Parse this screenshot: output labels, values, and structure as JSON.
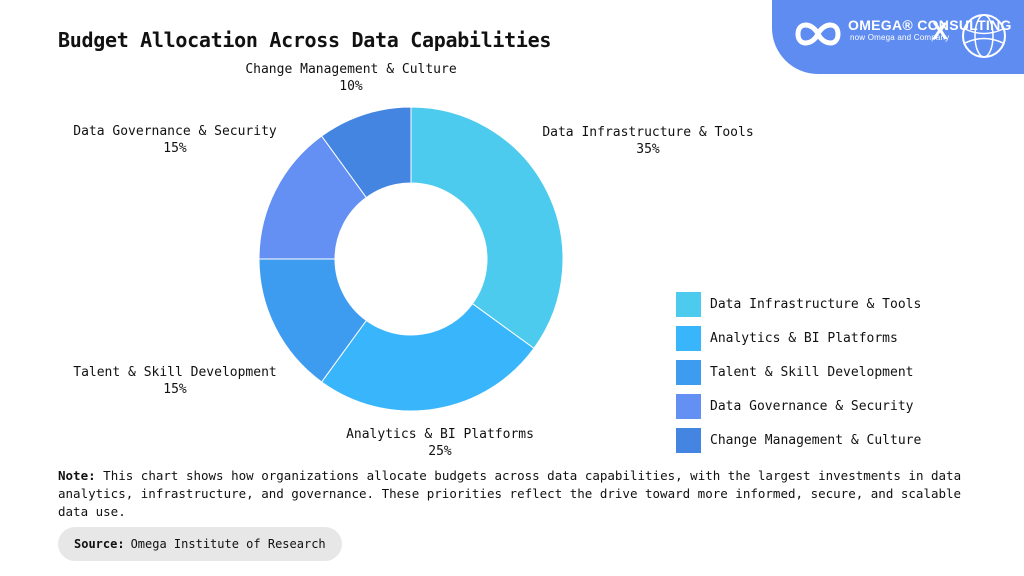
{
  "title": "Budget Allocation Across Data Capabilities",
  "brand": {
    "name": "OMEGA® CONSULTING",
    "tagline": "now Omega and Company",
    "separator": "X",
    "color": "#5f8cf1"
  },
  "chart_data": {
    "type": "pie",
    "variant": "donut",
    "categories": [
      "Data Infrastructure & Tools",
      "Analytics & BI Platforms",
      "Talent & Skill Development",
      "Data Governance & Security",
      "Change Management & Culture"
    ],
    "values": [
      35,
      25,
      15,
      15,
      10
    ],
    "value_labels": [
      "35%",
      "25%",
      "15%",
      "15%",
      "10%"
    ],
    "colors": [
      "#4ccbee",
      "#38b5fb",
      "#3d9cf0",
      "#6490f4",
      "#4385e0"
    ],
    "legend_position": "right"
  },
  "legend": {
    "items": [
      {
        "label": "Data Infrastructure & Tools",
        "color": "#4ccbee"
      },
      {
        "label": "Analytics & BI Platforms",
        "color": "#38b5fb"
      },
      {
        "label": "Talent & Skill Development",
        "color": "#3d9cf0"
      },
      {
        "label": "Data Governance & Security",
        "color": "#6490f4"
      },
      {
        "label": "Change Management & Culture",
        "color": "#4385e0"
      }
    ]
  },
  "note": {
    "label": "Note:",
    "text": "This chart shows how organizations allocate budgets across data capabilities, with the largest investments in data analytics, infrastructure, and governance. These priorities reflect the drive toward more informed, secure, and scalable data use."
  },
  "source": {
    "label": "Source:",
    "text": "Omega Institute of Research"
  }
}
